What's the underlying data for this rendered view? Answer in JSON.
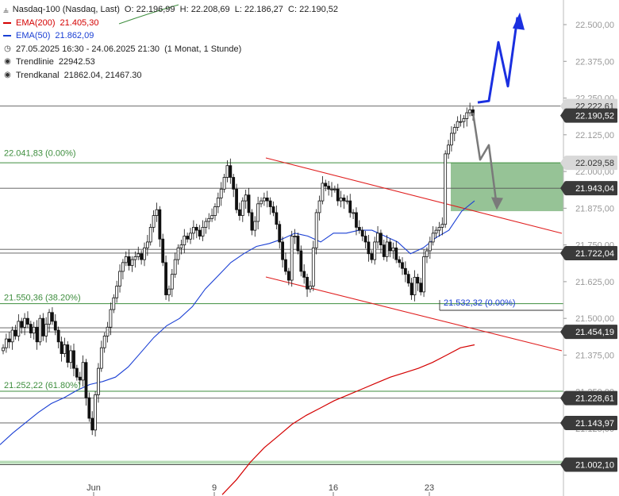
{
  "header": {
    "icon": "candlestick-icon",
    "title": "Nasdaq-100 (Nasdaq, Last)",
    "ohlc": "O: 22.196,99  H: 22.208,69  L: 22.186,27  C: 22.190,52"
  },
  "legend": {
    "ema200_label": "EMA(200)",
    "ema200_value": "21.405,30",
    "ema200_color": "#d40000",
    "ema50_label": "EMA(50)",
    "ema50_value": "21.862,09",
    "ema50_color": "#1a3fd4",
    "period": "27.05.2025 16:30 - 24.06.2025 21:30",
    "period_note": "(1 Monat, 1 Stunde)",
    "trendline_label": "Trendlinie",
    "trendline_value": "22942.53",
    "channel_label": "Trendkanal",
    "channel_value": "21862.04, 21467.30"
  },
  "chart_data": {
    "type": "candlestick",
    "instrument": "Nasdaq-100",
    "timeframe": "1 Stunde",
    "ylim": [
      21000,
      22550
    ],
    "x_tick_labels": [
      "Jun",
      "9",
      "16",
      "23"
    ],
    "y_tick_labels": [
      "22.500,00",
      "22.375,00",
      "22.250,00",
      "22.125,00",
      "22.000,00",
      "21.875,00",
      "21.750,00",
      "21.625,00",
      "21.500,00",
      "21.375,00",
      "21.250,00",
      "21.125,00"
    ],
    "price_badges": [
      {
        "label": "22.222,61",
        "style": "gray"
      },
      {
        "label": "22.190,52",
        "style": "dark"
      },
      {
        "label": "22.029,58",
        "style": "gray"
      },
      {
        "label": "21.943,04",
        "style": "dark"
      },
      {
        "label": "21.722,04",
        "style": "dark"
      },
      {
        "label": "21.454,19",
        "style": "dark"
      },
      {
        "label": "21.228,61",
        "style": "dark"
      },
      {
        "label": "21.143,97",
        "style": "dark"
      },
      {
        "label": "21.002,10",
        "style": "dark"
      }
    ],
    "horizontal_levels": [
      22222.61,
      22029.58,
      21943.04,
      21735,
      21722.04,
      21550,
      21468,
      21454.19,
      21252,
      21228.61,
      21143.97,
      21002.1,
      21010
    ],
    "fibonacci_labels": [
      {
        "label": "22.041,83 (0.00%)",
        "price": 22041.83
      },
      {
        "label": "21.550,36 (38.20%)",
        "price": 21550.36
      },
      {
        "label": "21.252,22 (61.80%)",
        "price": 21252.22
      }
    ],
    "swing_low_label": {
      "label": "21.532,32 (0.00%)",
      "price": 21532.32
    },
    "target_zone": {
      "from": 21865,
      "to": 22029.58,
      "color": "#90c090"
    },
    "closes": [
      21400,
      21430,
      21420,
      21460,
      21440,
      21490,
      21470,
      21500,
      21480,
      21450,
      21470,
      21420,
      21500,
      21440,
      21480,
      21520,
      21490,
      21460,
      21420,
      21380,
      21410,
      21350,
      21390,
      21330,
      21300,
      21290,
      21350,
      21230,
      21160,
      21120,
      21240,
      21330,
      21400,
      21440,
      21470,
      21530,
      21570,
      21610,
      21660,
      21690,
      21710,
      21680,
      21700,
      21710,
      21720,
      21700,
      21740,
      21760,
      21810,
      21850,
      21870,
      21770,
      21690,
      21580,
      21600,
      21650,
      21700,
      21740,
      21750,
      21780,
      21770,
      21790,
      21810,
      21800,
      21780,
      21810,
      21830,
      21840,
      21850,
      21880,
      21910,
      21940,
      21980,
      22020,
      21980,
      21940,
      21870,
      21850,
      21900,
      21920,
      21860,
      21800,
      21830,
      21890,
      21900,
      21910,
      21900,
      21880,
      21860,
      21820,
      21760,
      21700,
      21660,
      21630,
      21780,
      21780,
      21730,
      21660,
      21640,
      21600,
      21610,
      21740,
      21860,
      21900,
      21960,
      21950,
      21940,
      21940,
      21940,
      21900,
      21910,
      21900,
      21900,
      21860,
      21860,
      21810,
      21800,
      21780,
      21760,
      21720,
      21700,
      21760,
      21790,
      21750,
      21710,
      21760,
      21730,
      21740,
      21700,
      21690,
      21670,
      21650,
      21620,
      21580,
      21640,
      21620,
      21590,
      21710,
      21730,
      21760,
      21790,
      21800,
      21810,
      21820,
      22060,
      22090,
      22130,
      22150,
      22170,
      22170,
      22180,
      22200,
      22210,
      22190
    ],
    "ema50": [
      21070,
      21110,
      21145,
      21180,
      21210,
      21230,
      21255,
      21275,
      21285,
      21300,
      21335,
      21385,
      21435,
      21475,
      21500,
      21540,
      21600,
      21645,
      21690,
      21720,
      21745,
      21755,
      21770,
      21790,
      21780,
      21760,
      21790,
      21790,
      21800,
      21800,
      21780,
      21760,
      21720,
      21740,
      21775,
      21800,
      21865,
      21900
    ],
    "ema200": [
      20900,
      20950,
      21010,
      21060,
      21100,
      21140,
      21170,
      21195,
      21220,
      21240,
      21260,
      21280,
      21300,
      21315,
      21330,
      21350,
      21375,
      21400,
      21410
    ],
    "trendline_upper": [
      [
        22041.83
      ],
      [
        21740
      ]
    ],
    "trendline_lower": [
      [
        21630
      ],
      [
        21390
      ]
    ],
    "projection_bull": [
      22235,
      22240,
      22440,
      22290,
      22525
    ],
    "projection_bear": [
      22200,
      22040,
      22090,
      21880
    ]
  }
}
